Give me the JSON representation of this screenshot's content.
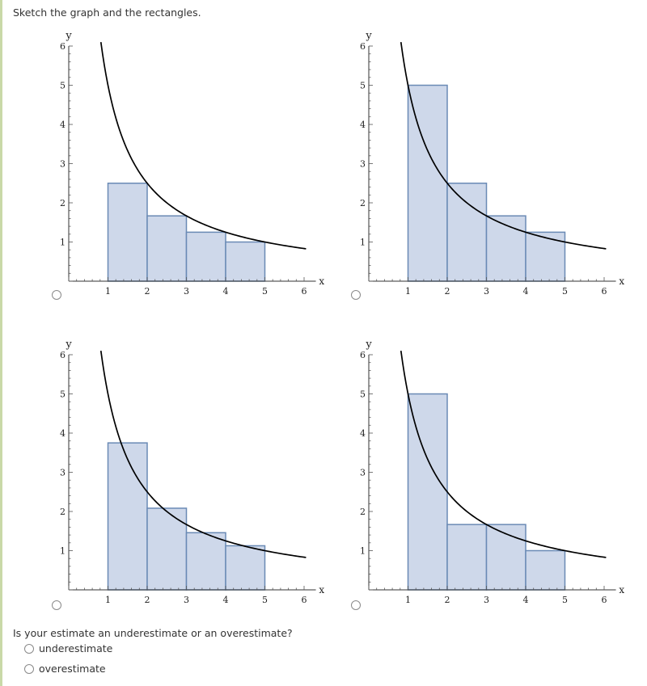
{
  "prompt": "Sketch the graph and the rectangles.",
  "question": "Is your estimate an underestimate or an overestimate?",
  "answers": [
    "underestimate",
    "overestimate"
  ],
  "colors": {
    "rect_fill": "#ced8ea",
    "rect_stroke": "#6a8ab5",
    "curve": "#000000"
  },
  "chart_data": [
    {
      "type": "bar",
      "xlabel": "x",
      "ylabel": "y",
      "xlim": [
        0,
        6
      ],
      "ylim": [
        0,
        6
      ],
      "xticks": [
        "1",
        "2",
        "3",
        "4",
        "5",
        "6"
      ],
      "yticks": [
        "1",
        "2",
        "3",
        "4",
        "5",
        "6"
      ],
      "curve": "y = 5/x",
      "bars": [
        {
          "x0": 1,
          "x1": 2,
          "h": 2.5
        },
        {
          "x0": 2,
          "x1": 3,
          "h": 1.667
        },
        {
          "x0": 3,
          "x1": 4,
          "h": 1.25
        },
        {
          "x0": 4,
          "x1": 5,
          "h": 1.0
        }
      ]
    },
    {
      "type": "bar",
      "xlabel": "x",
      "ylabel": "y",
      "xlim": [
        0,
        6
      ],
      "ylim": [
        0,
        6
      ],
      "xticks": [
        "1",
        "2",
        "3",
        "4",
        "5",
        "6"
      ],
      "yticks": [
        "1",
        "2",
        "3",
        "4",
        "5",
        "6"
      ],
      "curve": "y = 5/x",
      "bars": [
        {
          "x0": 1,
          "x1": 2,
          "h": 5.0
        },
        {
          "x0": 2,
          "x1": 3,
          "h": 2.5
        },
        {
          "x0": 3,
          "x1": 4,
          "h": 1.667
        },
        {
          "x0": 4,
          "x1": 5,
          "h": 1.25
        }
      ]
    },
    {
      "type": "bar",
      "xlabel": "x",
      "ylabel": "y",
      "xlim": [
        0,
        6
      ],
      "ylim": [
        0,
        6
      ],
      "xticks": [
        "1",
        "2",
        "3",
        "4",
        "5",
        "6"
      ],
      "yticks": [
        "1",
        "2",
        "3",
        "4",
        "5",
        "6"
      ],
      "curve": "y = 5/x",
      "bars": [
        {
          "x0": 1,
          "x1": 2,
          "h": 3.75
        },
        {
          "x0": 2,
          "x1": 3,
          "h": 2.083
        },
        {
          "x0": 3,
          "x1": 4,
          "h": 1.458
        },
        {
          "x0": 4,
          "x1": 5,
          "h": 1.125
        }
      ]
    },
    {
      "type": "bar",
      "xlabel": "x",
      "ylabel": "y",
      "xlim": [
        0,
        6
      ],
      "ylim": [
        0,
        6
      ],
      "xticks": [
        "1",
        "2",
        "3",
        "4",
        "5",
        "6"
      ],
      "yticks": [
        "1",
        "2",
        "3",
        "4",
        "5",
        "6"
      ],
      "curve": "y = 5/x",
      "bars": [
        {
          "x0": 1,
          "x1": 2,
          "h": 5.0
        },
        {
          "x0": 2,
          "x1": 3,
          "h": 1.667
        },
        {
          "x0": 3,
          "x1": 4,
          "h": 1.667
        },
        {
          "x0": 4,
          "x1": 5,
          "h": 1.0
        }
      ]
    }
  ]
}
